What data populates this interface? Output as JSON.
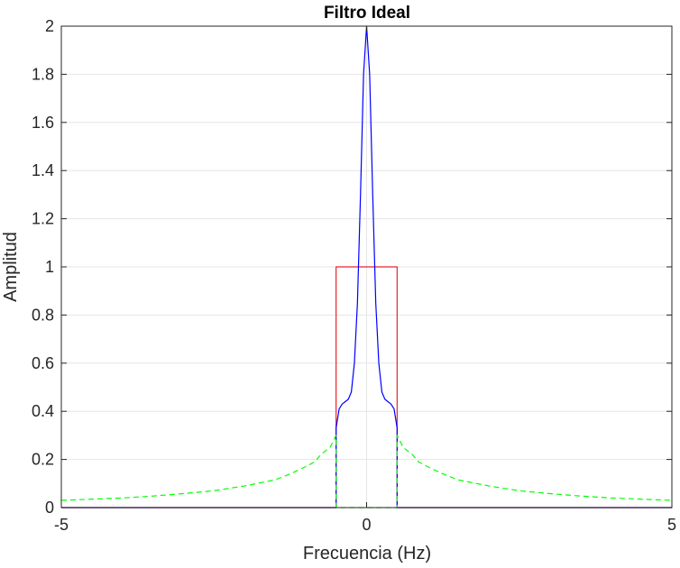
{
  "chart_data": {
    "type": "line",
    "title": "Filtro Ideal",
    "xlabel": "Frecuencia (Hz)",
    "ylabel": "Amplitud",
    "xlim": [
      -5,
      5
    ],
    "ylim": [
      0,
      2
    ],
    "xticks": [
      -5,
      0,
      5
    ],
    "yticks": [
      0,
      0.2,
      0.4,
      0.6,
      0.8,
      1,
      1.2,
      1.4,
      1.6,
      1.8,
      2
    ],
    "xtick_labels": [
      "-5",
      "0",
      "5"
    ],
    "ytick_labels": [
      "0",
      "0.2",
      "0.4",
      "0.6",
      "0.8",
      "1",
      "1.2",
      "1.4",
      "1.6",
      "1.8",
      "2"
    ],
    "grid": true,
    "legend": "none",
    "colors": {
      "ideal_filter": "#e8262a",
      "filtered_spectrum": "#0000ff",
      "input_spectrum": "#00ff00",
      "axes": "#262626",
      "grid": "#e6e6e6"
    },
    "series": [
      {
        "color": "#e8262a",
        "style": "solid",
        "x": [
          -5,
          -0.5,
          -0.5,
          0.5,
          0.5,
          5
        ],
        "y": [
          0,
          0,
          1,
          1,
          0,
          0
        ]
      },
      {
        "color": "#0000ff",
        "style": "solid",
        "x": [
          -5,
          -0.5,
          -0.5,
          -0.45,
          -0.4,
          -0.35,
          -0.3,
          -0.25,
          -0.2,
          -0.15,
          -0.1,
          -0.05,
          0,
          0.05,
          0.1,
          0.15,
          0.2,
          0.25,
          0.3,
          0.35,
          0.4,
          0.45,
          0.5,
          0.5,
          5
        ],
        "y": [
          0,
          0,
          0.33,
          0.41,
          0.43,
          0.44,
          0.45,
          0.48,
          0.6,
          0.85,
          1.3,
          1.8,
          2.0,
          1.8,
          1.3,
          0.85,
          0.6,
          0.48,
          0.45,
          0.44,
          0.43,
          0.41,
          0.33,
          0,
          0
        ]
      },
      {
        "color": "#00ff00",
        "style": "dashed",
        "x": [
          -5,
          -4.5,
          -4,
          -3.5,
          -3,
          -2.5,
          -2,
          -1.5,
          -1.25,
          -1,
          -0.85,
          -0.75,
          -0.6,
          -0.5,
          -0.5,
          0.5,
          0.5,
          0.6,
          0.75,
          0.85,
          1,
          1.25,
          1.5,
          2,
          2.5,
          3,
          3.5,
          4,
          4.5,
          5
        ],
        "y": [
          0.03,
          0.035,
          0.04,
          0.048,
          0.058,
          0.07,
          0.09,
          0.115,
          0.14,
          0.17,
          0.19,
          0.22,
          0.25,
          0.3,
          0,
          0,
          0.3,
          0.25,
          0.22,
          0.19,
          0.17,
          0.14,
          0.115,
          0.09,
          0.07,
          0.058,
          0.048,
          0.04,
          0.035,
          0.03
        ]
      }
    ]
  }
}
